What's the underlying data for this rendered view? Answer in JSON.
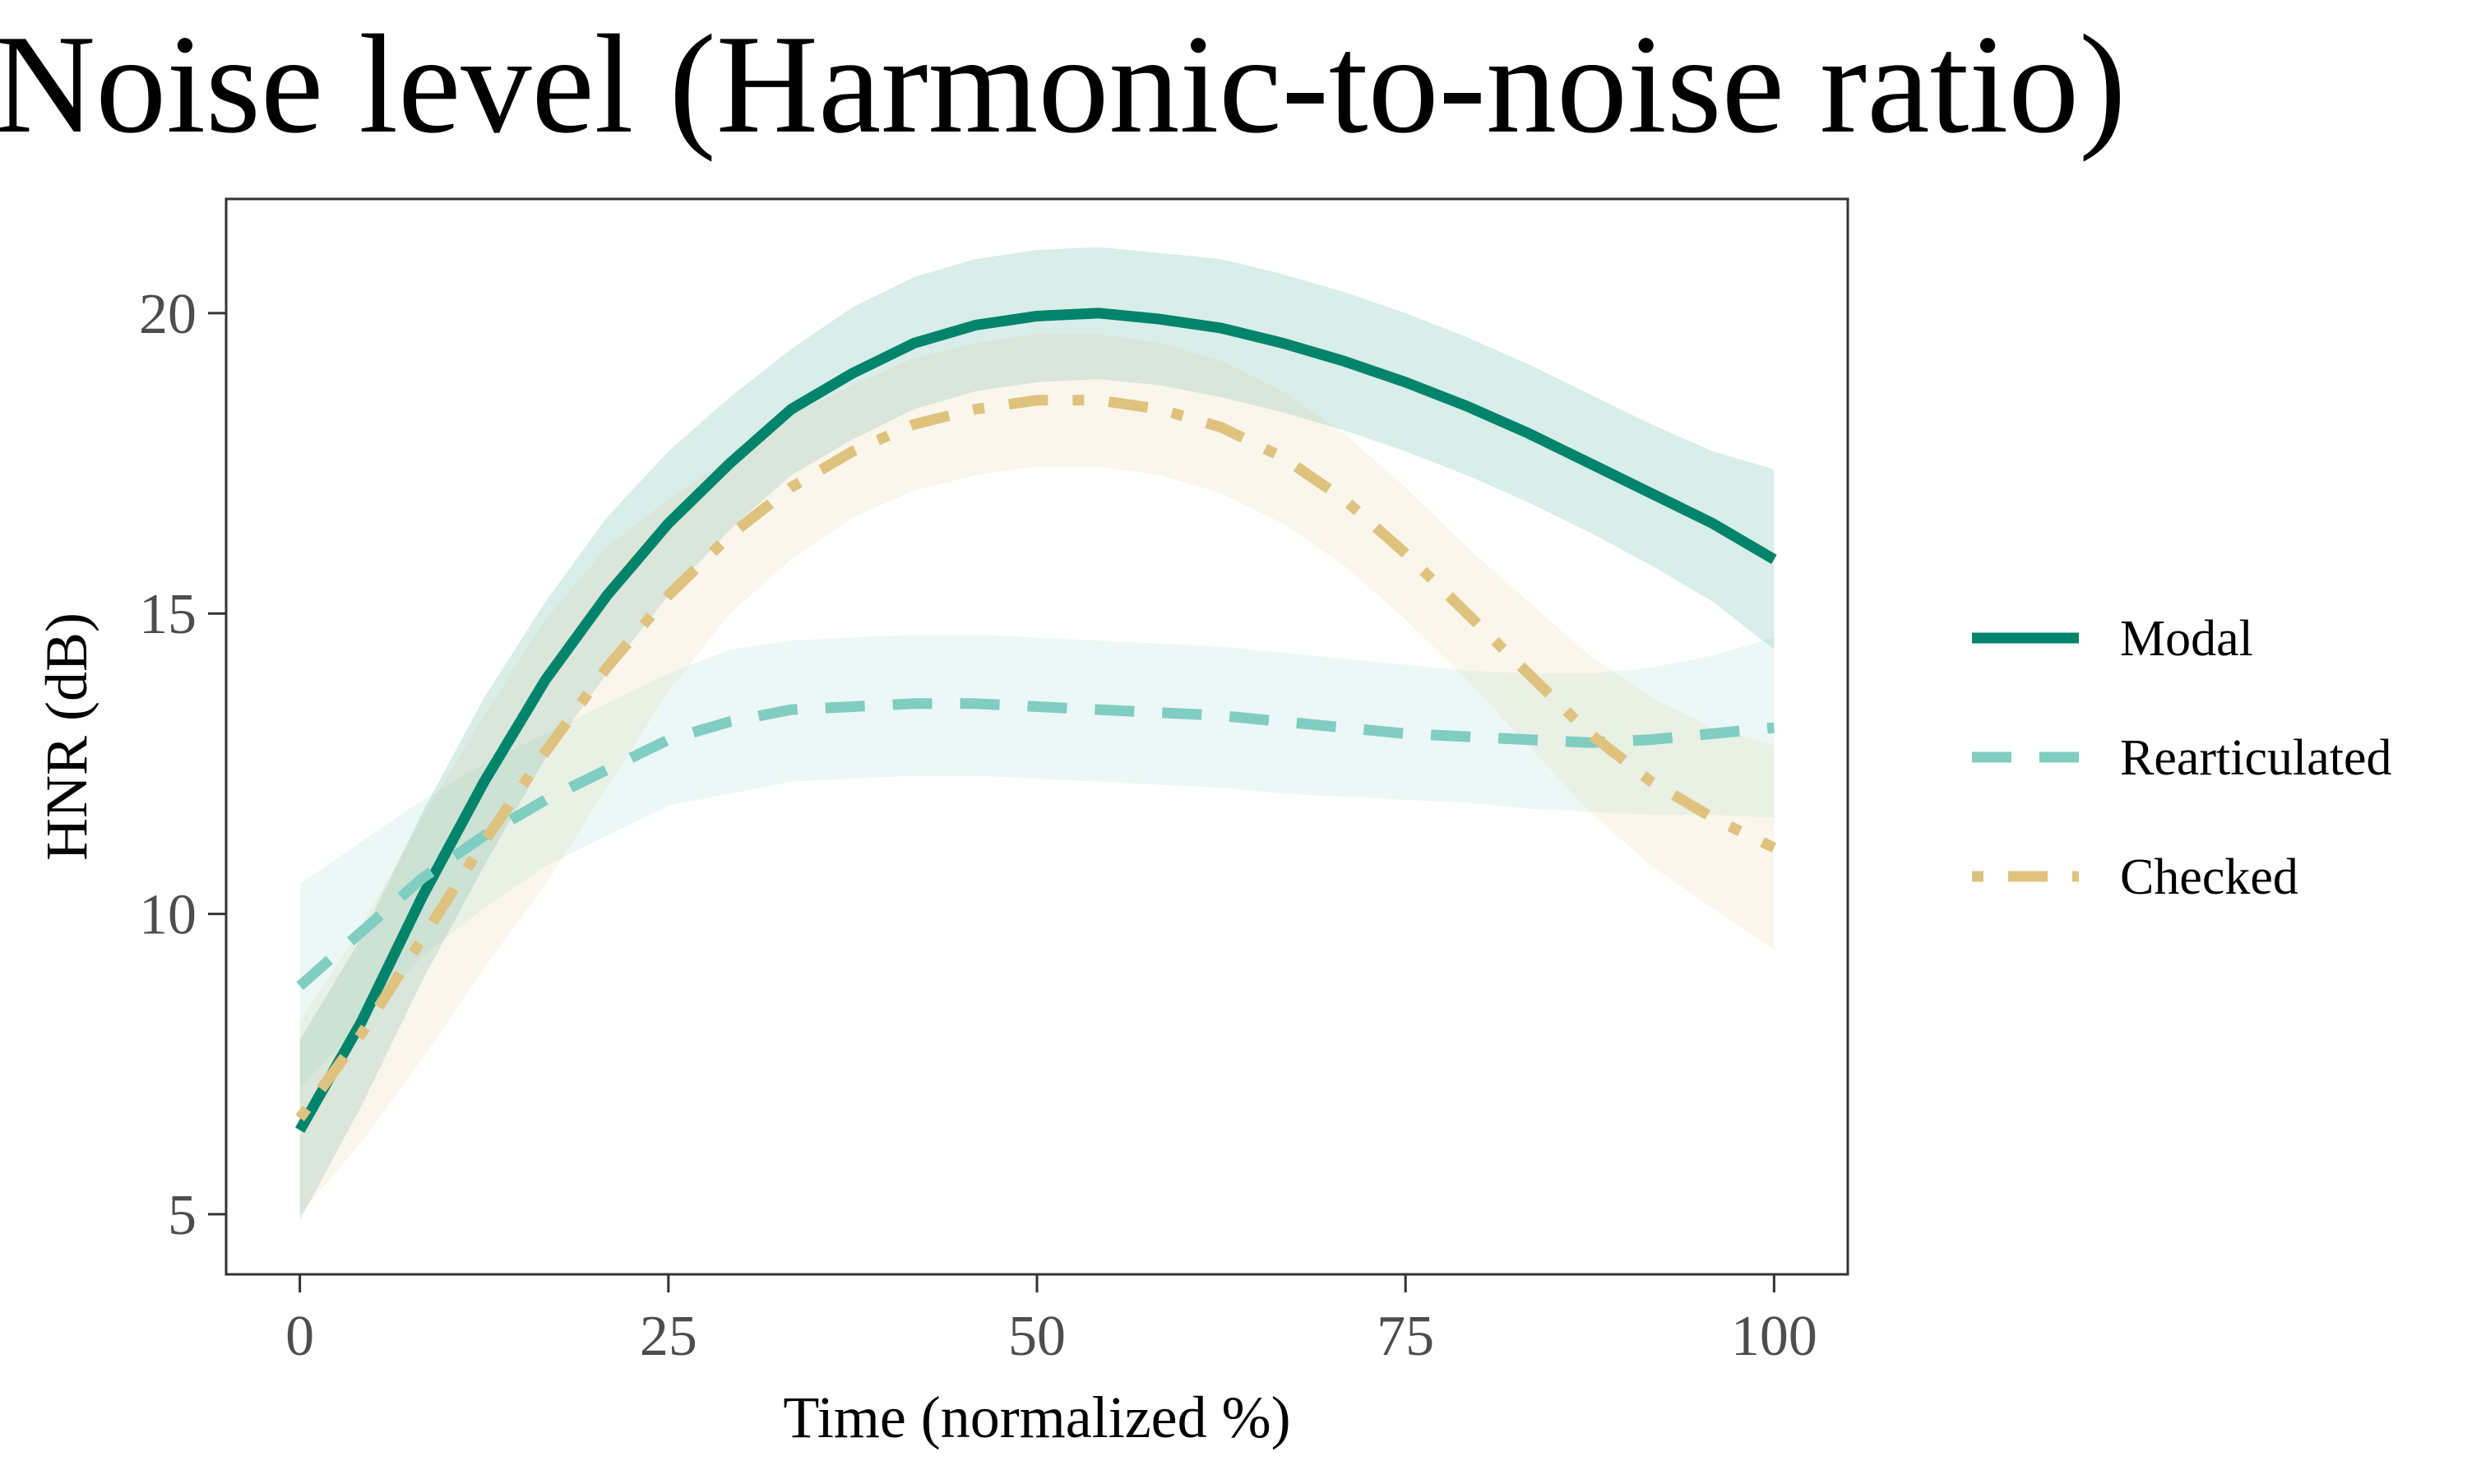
{
  "chart_data": {
    "type": "line",
    "title": "Noise level (Harmonic-to-noise ratio)",
    "xlabel": "Time (normalized %)",
    "ylabel": "HNR (dB)",
    "xlim": [
      -5,
      105
    ],
    "ylim": [
      4,
      21.9
    ],
    "x_ticks": [
      "0",
      "25",
      "50",
      "75",
      "100"
    ],
    "y_ticks": [
      "5",
      "10",
      "15",
      "20"
    ],
    "grid": false,
    "legend_position": "right",
    "x": [
      0,
      4.17,
      8.33,
      12.5,
      16.67,
      20.83,
      25,
      29.17,
      33.33,
      37.5,
      41.67,
      45.83,
      50,
      54.17,
      58.33,
      62.5,
      66.67,
      70.83,
      75,
      79.17,
      83.33,
      87.5,
      91.67,
      95.83,
      100
    ],
    "series": [
      {
        "name": "Modal",
        "color": "#00846b",
        "style": "solid",
        "values": [
          6.4,
          8.2,
          10.3,
          12.2,
          13.9,
          15.3,
          16.5,
          17.5,
          18.4,
          19.0,
          19.5,
          19.8,
          19.95,
          20.0,
          19.9,
          19.75,
          19.5,
          19.2,
          18.85,
          18.45,
          18.0,
          17.5,
          17.0,
          16.5,
          15.9
        ],
        "lower": [
          4.9,
          6.8,
          8.9,
          10.8,
          12.6,
          14.0,
          15.3,
          16.4,
          17.3,
          17.9,
          18.4,
          18.7,
          18.85,
          18.9,
          18.8,
          18.6,
          18.35,
          18.05,
          17.7,
          17.3,
          16.85,
          16.35,
          15.8,
          15.2,
          14.4
        ],
        "upper": [
          7.9,
          9.6,
          11.7,
          13.6,
          15.2,
          16.6,
          17.7,
          18.6,
          19.4,
          20.1,
          20.6,
          20.9,
          21.05,
          21.1,
          21.0,
          20.9,
          20.65,
          20.35,
          20.0,
          19.6,
          19.15,
          18.65,
          18.15,
          17.7,
          17.4
        ]
      },
      {
        "name": "Rearticulated",
        "color": "#80cdc1",
        "style": "dashed",
        "values": [
          8.8,
          9.7,
          10.6,
          11.3,
          11.9,
          12.4,
          12.9,
          13.2,
          13.4,
          13.45,
          13.5,
          13.5,
          13.45,
          13.4,
          13.35,
          13.3,
          13.2,
          13.1,
          13.0,
          12.95,
          12.9,
          12.85,
          12.9,
          13.0,
          13.1
        ],
        "lower": [
          7.1,
          8.2,
          9.3,
          10.1,
          10.8,
          11.3,
          11.8,
          12.0,
          12.2,
          12.25,
          12.3,
          12.3,
          12.25,
          12.2,
          12.15,
          12.1,
          12.0,
          11.95,
          11.9,
          11.85,
          11.75,
          11.7,
          11.65,
          11.65,
          11.6
        ],
        "upper": [
          10.5,
          11.2,
          11.9,
          12.5,
          13.0,
          13.5,
          14.0,
          14.4,
          14.55,
          14.6,
          14.65,
          14.65,
          14.6,
          14.55,
          14.5,
          14.45,
          14.35,
          14.25,
          14.15,
          14.05,
          14.0,
          14.0,
          14.1,
          14.3,
          14.6
        ]
      },
      {
        "name": "Checked",
        "color": "#dfc27d",
        "style": "dotdash",
        "values": [
          6.6,
          8.0,
          9.6,
          11.2,
          12.7,
          14.1,
          15.3,
          16.3,
          17.1,
          17.7,
          18.15,
          18.4,
          18.55,
          18.55,
          18.4,
          18.1,
          17.6,
          16.9,
          16.0,
          15.0,
          14.0,
          13.0,
          12.2,
          11.6,
          11.1
        ],
        "lower": [
          5.0,
          6.2,
          7.6,
          9.1,
          10.5,
          12.1,
          13.7,
          15.0,
          15.9,
          16.6,
          17.05,
          17.3,
          17.45,
          17.45,
          17.3,
          17.0,
          16.5,
          15.8,
          14.9,
          13.9,
          12.8,
          11.7,
          10.8,
          10.1,
          9.4
        ],
        "upper": [
          8.2,
          9.8,
          11.6,
          13.3,
          14.9,
          16.1,
          16.9,
          17.6,
          18.3,
          18.8,
          19.25,
          19.5,
          19.65,
          19.65,
          19.5,
          19.2,
          18.7,
          18.0,
          17.1,
          16.1,
          15.2,
          14.3,
          13.6,
          13.1,
          12.8
        ]
      }
    ]
  }
}
